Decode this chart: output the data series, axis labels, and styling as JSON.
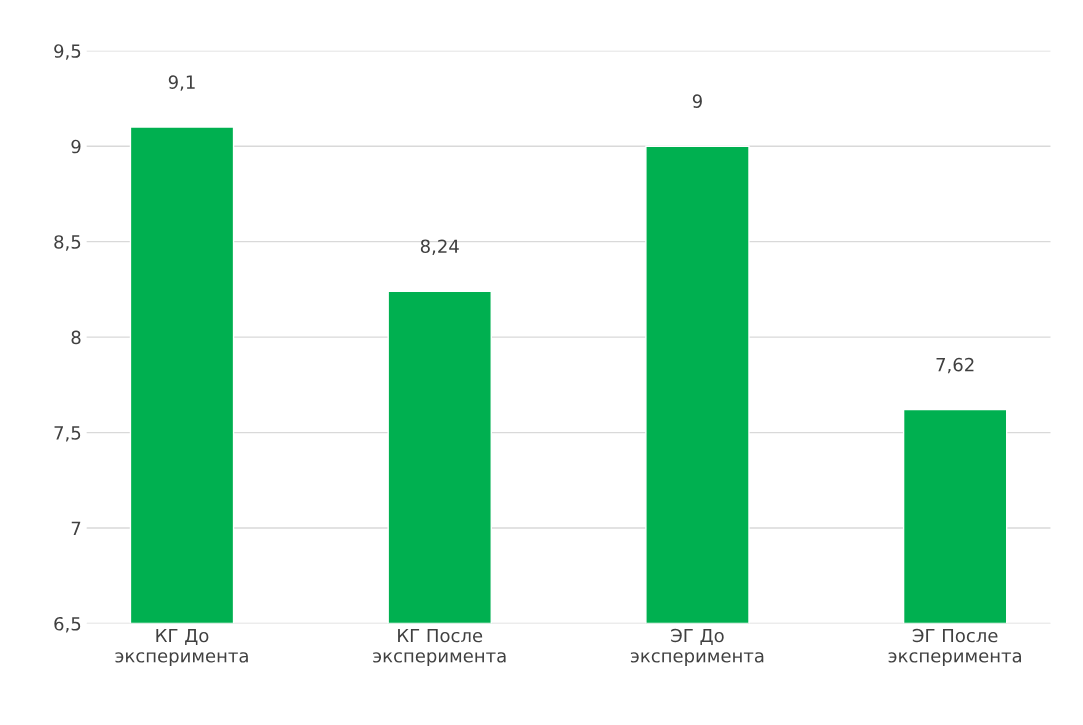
{
  "chart_data": {
    "type": "bar",
    "categories": [
      "КГ До\nэксперимента",
      "КГ После\nэксперимента",
      "ЭГ До\nэксперимента",
      "ЭГ После\nэксперимента"
    ],
    "values": [
      9.1,
      8.24,
      9,
      7.62
    ],
    "value_labels": [
      "9,1",
      "8,24",
      "9",
      "7,62"
    ],
    "color": "#00b050",
    "ylim": [
      6.5,
      9.5
    ],
    "yticks": [
      {
        "value": 6.5,
        "label": "6,5"
      },
      7,
      {
        "value": 7.5,
        "label": "7,5"
      },
      8,
      {
        "value": 8.5,
        "label": "8,5"
      },
      9,
      {
        "value": 9.5,
        "label": "9,5"
      }
    ],
    "grid": "y"
  }
}
